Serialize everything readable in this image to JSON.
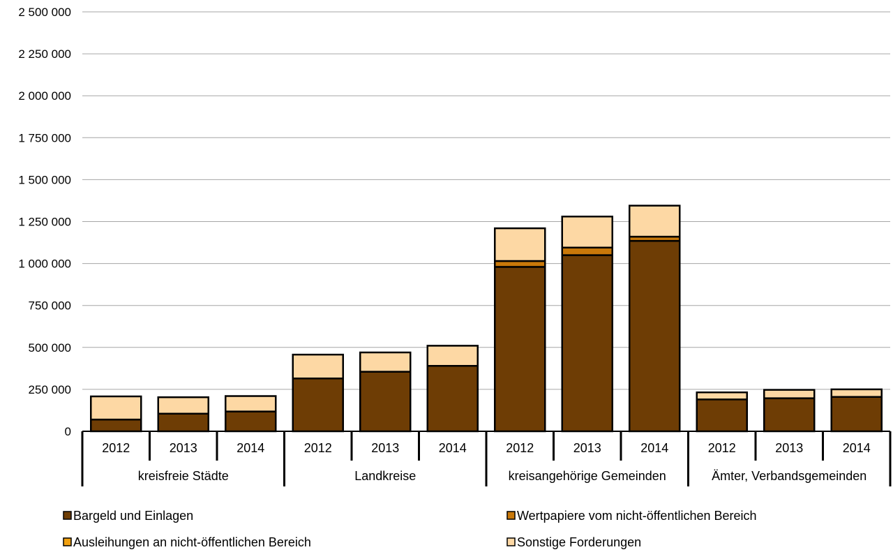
{
  "chart_data": {
    "type": "bar",
    "stacked": true,
    "ylim": [
      0,
      2500000
    ],
    "yticks": [
      {
        "value": 0,
        "label": "0"
      },
      {
        "value": 250000,
        "label": "250 000"
      },
      {
        "value": 500000,
        "label": "500 000"
      },
      {
        "value": 750000,
        "label": "750 000"
      },
      {
        "value": 1000000,
        "label": "1 000 000"
      },
      {
        "value": 1250000,
        "label": "1 250 000"
      },
      {
        "value": 1500000,
        "label": "1 500 000"
      },
      {
        "value": 1750000,
        "label": "1 750 000"
      },
      {
        "value": 2000000,
        "label": "2 000 000"
      },
      {
        "value": 2250000,
        "label": "2 250 000"
      },
      {
        "value": 2500000,
        "label": "2 500 000"
      }
    ],
    "grid": true,
    "legend_position": "bottom",
    "groups": [
      "kreisfreie Städte",
      "Landkreise",
      "kreisangehörige Gemeinden",
      "Ämter, Verbandsgemeinden"
    ],
    "years": [
      "2012",
      "2013",
      "2014"
    ],
    "series": [
      {
        "name": "Bargeld und Einlagen",
        "color": "#6E3D05",
        "values": [
          70000,
          105000,
          118000,
          315000,
          355000,
          390000,
          980000,
          1050000,
          1135000,
          190000,
          197000,
          205000
        ]
      },
      {
        "name": "Wertpapiere vom nicht-öffentlichen Bereich",
        "color": "#C8780A",
        "values": [
          0,
          0,
          0,
          0,
          0,
          0,
          35000,
          45000,
          25000,
          0,
          0,
          0
        ]
      },
      {
        "name": "Ausleihungen an nicht-öffentlichen Bereich",
        "color": "#F0A010",
        "values": [
          0,
          0,
          0,
          0,
          0,
          0,
          0,
          0,
          0,
          0,
          0,
          0
        ]
      },
      {
        "name": "Sonstige Forderungen",
        "color": "#FDD8A4",
        "values": [
          138000,
          98000,
          92000,
          142000,
          115000,
          120000,
          195000,
          185000,
          185000,
          42000,
          50000,
          45000
        ]
      }
    ]
  }
}
